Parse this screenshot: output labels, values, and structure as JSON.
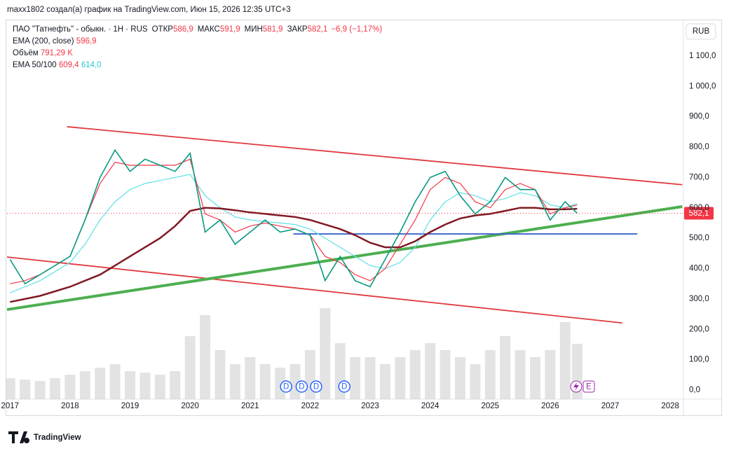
{
  "chart_data": {
    "type": "line",
    "attribution": "maxx1802 создал(а) график на TradingView.com, Июн 15, 2026 12:35 UTC+3",
    "currency": "RUB",
    "brand": "TradingView",
    "ohlc": [
      {
        "label": "ОТКР",
        "value": "586,9"
      },
      {
        "label": "МАКС",
        "value": "591,9"
      },
      {
        "label": "МИН",
        "value": "581,9"
      },
      {
        "label": "ЗАКР",
        "value": "582,1"
      }
    ],
    "change": "−6,9 (−1,17%)",
    "x": [
      2017.0,
      2017.25,
      2017.5,
      2017.75,
      2018.0,
      2018.25,
      2018.5,
      2018.75,
      2019.0,
      2019.25,
      2019.5,
      2019.75,
      2020.0,
      2020.25,
      2020.5,
      2020.75,
      2021.0,
      2021.25,
      2021.5,
      2021.75,
      2022.0,
      2022.25,
      2022.5,
      2022.75,
      2023.0,
      2023.25,
      2023.5,
      2023.75,
      2024.0,
      2024.25,
      2024.5,
      2024.75,
      2025.0,
      2025.25,
      2025.5,
      2025.75,
      2026.0,
      2026.25,
      2026.45
    ],
    "series": [
      {
        "name": "ПАО \"Татнефть\" - обыкн. · 1H · RUS",
        "color": "#089981",
        "last_label": "582,1",
        "values": [
          430,
          350,
          380,
          410,
          440,
          560,
          700,
          790,
          720,
          760,
          740,
          720,
          780,
          520,
          560,
          480,
          520,
          560,
          520,
          530,
          510,
          360,
          440,
          360,
          340,
          430,
          520,
          620,
          700,
          720,
          640,
          580,
          620,
          700,
          660,
          660,
          560,
          620,
          582.1
        ]
      },
      {
        "name": "EMA (200, close)",
        "color": "#801922",
        "legend_value": "596,9",
        "values": [
          290,
          300,
          310,
          325,
          340,
          360,
          380,
          410,
          440,
          470,
          500,
          540,
          590,
          600,
          598,
          592,
          585,
          580,
          575,
          570,
          560,
          545,
          530,
          510,
          485,
          470,
          470,
          490,
          520,
          545,
          565,
          575,
          580,
          590,
          600,
          600,
          595,
          595,
          596.9
        ]
      },
      {
        "name": "EMA 50/100",
        "color": "#f23645",
        "legend_value": "609,4",
        "values": [
          350,
          360,
          380,
          410,
          440,
          560,
          680,
          750,
          740,
          740,
          740,
          740,
          760,
          580,
          560,
          520,
          540,
          550,
          540,
          530,
          510,
          440,
          420,
          380,
          360,
          400,
          480,
          560,
          660,
          700,
          680,
          620,
          600,
          660,
          680,
          660,
          580,
          600,
          609.4
        ]
      },
      {
        "color": "#5ce1e6",
        "legend_value": "614,0",
        "values": [
          320,
          340,
          360,
          390,
          420,
          480,
          560,
          620,
          660,
          680,
          690,
          700,
          710,
          640,
          600,
          570,
          560,
          555,
          550,
          545,
          530,
          500,
          470,
          440,
          410,
          400,
          420,
          470,
          560,
          620,
          650,
          640,
          620,
          630,
          650,
          640,
          610,
          600,
          614.0
        ]
      }
    ],
    "volume": {
      "name": "Объём",
      "color": "#c8c8c8",
      "legend_value": "791,29 K",
      "values": [
        300,
        280,
        260,
        300,
        350,
        400,
        450,
        500,
        400,
        380,
        350,
        400,
        900,
        1200,
        700,
        500,
        600,
        500,
        450,
        500,
        700,
        1300,
        800,
        600,
        600,
        500,
        600,
        700,
        800,
        700,
        600,
        500,
        700,
        900,
        700,
        600,
        700,
        1100,
        791.29
      ]
    },
    "drawings": [
      {
        "color": "#e0383e",
        "x": [
          2017.95,
          2028.2
        ],
        "y": [
          867,
          676
        ]
      },
      {
        "color": "#e0383e",
        "x": [
          2016.95,
          2027.2
        ],
        "y": [
          438,
          221
        ]
      },
      {
        "color": "#4caf50",
        "x": [
          2016.95,
          2028.2
        ],
        "y": [
          265,
          604
        ]
      },
      {
        "color": "#3c64c8",
        "x": [
          2021.72,
          2027.45
        ],
        "y": [
          514,
          514
        ]
      }
    ],
    "dividends": {
      "label": "D",
      "x": [
        2021.6,
        2021.86,
        2022.1,
        2022.57
      ]
    },
    "earnings_label": "E",
    "xlim": [
      2016.95,
      2028.22
    ],
    "xticks": [
      2017,
      2018,
      2019,
      2020,
      2021,
      2022,
      2023,
      2024,
      2025,
      2026,
      2027,
      2028
    ],
    "ylim": [
      -30,
      1215
    ],
    "yticks": [
      {
        "value": 0,
        "label": "0,0"
      },
      {
        "value": 100,
        "label": "100,0"
      },
      {
        "value": 200,
        "label": "200,0"
      },
      {
        "value": 300,
        "label": "300,0"
      },
      {
        "value": 400,
        "label": "400,0"
      },
      {
        "value": 500,
        "label": "500,0"
      },
      {
        "value": 600,
        "label": "600,0"
      },
      {
        "value": 700,
        "label": "700,0"
      },
      {
        "value": 800,
        "label": "800,0"
      },
      {
        "value": 900,
        "label": "900,0"
      },
      {
        "value": 1000,
        "label": "1 000,0"
      },
      {
        "value": 1100,
        "label": "1 100,0"
      }
    ],
    "grid": false
  }
}
